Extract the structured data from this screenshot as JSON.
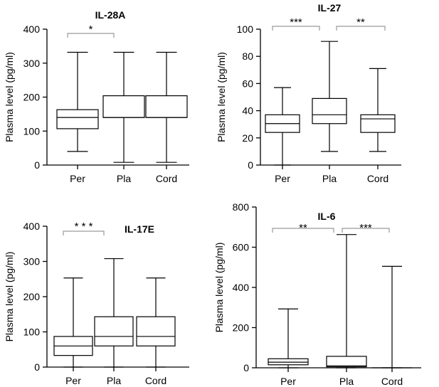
{
  "chart_data": [
    {
      "type": "boxplot",
      "title": "IL-28A",
      "ylabel": "Plasma level (pg/ml)",
      "xlabel": "",
      "ylim": [
        0,
        400
      ],
      "yticks": [
        0,
        100,
        200,
        300,
        400
      ],
      "categories": [
        "Per",
        "Pla",
        "Cord"
      ],
      "boxes": [
        {
          "min": 40,
          "q1": 107,
          "median": 140,
          "q3": 163,
          "max": 332
        },
        {
          "min": 8,
          "q1": 140,
          "median": 140,
          "q3": 204,
          "max": 332
        },
        {
          "min": 8,
          "q1": 140,
          "median": 140,
          "q3": 204,
          "max": 332
        }
      ],
      "significance": [
        {
          "from": 0,
          "to": 1,
          "label": "*"
        }
      ]
    },
    {
      "type": "boxplot",
      "title": "IL-27",
      "ylabel": "Plasma level (pg/ml)",
      "xlabel": "",
      "ylim": [
        0,
        100
      ],
      "yticks": [
        0,
        20,
        40,
        60,
        80,
        100
      ],
      "categories": [
        "Per",
        "Pla",
        "Cord"
      ],
      "boxes": [
        {
          "min": 0,
          "q1": 24,
          "median": 30.5,
          "q3": 37,
          "max": 57
        },
        {
          "min": 10,
          "q1": 30.5,
          "median": 37,
          "q3": 49,
          "max": 91
        },
        {
          "min": 10,
          "q1": 24,
          "median": 34,
          "q3": 37,
          "max": 71
        }
      ],
      "significance": [
        {
          "from": 0,
          "to": 1,
          "label": "***"
        },
        {
          "from": 1,
          "to": 2,
          "label": "**"
        }
      ]
    },
    {
      "type": "boxplot",
      "title": "IL-17E",
      "ylabel": "Plasma level (pg/ml)",
      "xlabel": "",
      "ylim": [
        0,
        400
      ],
      "yticks": [
        0,
        100,
        200,
        300,
        400
      ],
      "categories": [
        "Per",
        "Pla",
        "Cord"
      ],
      "boxes": [
        {
          "min": 0,
          "q1": 33,
          "median": 60,
          "q3": 87,
          "max": 253
        },
        {
          "min": 0,
          "q1": 60,
          "median": 87,
          "q3": 143,
          "max": 308
        },
        {
          "min": 0,
          "q1": 60,
          "median": 87,
          "q3": 143,
          "max": 253
        }
      ],
      "significance": [
        {
          "from": 0,
          "to": 1,
          "label": "* * *"
        }
      ]
    },
    {
      "type": "boxplot",
      "title": "IL-6",
      "ylabel": "Plasma level (pg/ml)",
      "xlabel": "",
      "ylim": [
        0,
        800
      ],
      "yticks": [
        0,
        200,
        400,
        600,
        800
      ],
      "categories": [
        "Per",
        "Pla",
        "Cord"
      ],
      "boxes": [
        {
          "min": 0,
          "q1": 15,
          "median": 28,
          "q3": 45,
          "max": 293
        },
        {
          "min": 0,
          "q1": 5,
          "median": 10,
          "q3": 57,
          "max": 663
        },
        {
          "min": 0,
          "q1": 0,
          "median": 0,
          "q3": 0,
          "max": 505
        }
      ],
      "significance": [
        {
          "from": 0,
          "to": 1,
          "label": "**"
        },
        {
          "from": 1,
          "to": 2,
          "label": "***"
        }
      ]
    }
  ]
}
